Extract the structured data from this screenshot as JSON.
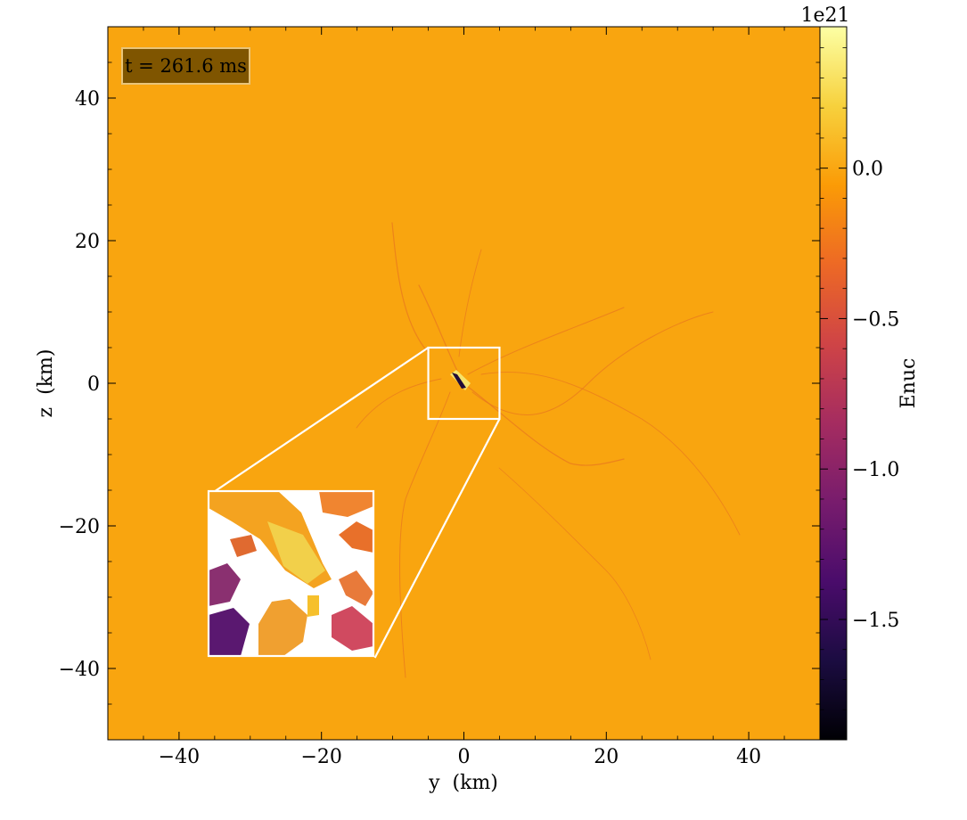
{
  "chart_data": {
    "type": "heatmap",
    "title": "",
    "xlabel": "y  (km)",
    "ylabel": "z  (km)",
    "xlim": [
      -50,
      50
    ],
    "ylim": [
      -50,
      50
    ],
    "xticks": [
      -40,
      -20,
      0,
      20,
      40
    ],
    "yticks": [
      -40,
      -20,
      0,
      20,
      40
    ],
    "x_tick_labels": [
      "−40",
      "−20",
      "0",
      "20",
      "40"
    ],
    "y_tick_labels": [
      "−40",
      "−20",
      "0",
      "20",
      "40"
    ],
    "x_minor_step": 5,
    "y_minor_step": 5,
    "background_value": 0.0,
    "annotation": "t = 261.6 ms",
    "annotation_colors": {
      "fill": "#7f5500",
      "border": "#e8c47a",
      "text": "#ffffff"
    },
    "field_colors": {
      "background": "#f9a50f",
      "streak": "#e8781f",
      "bright": "#f6e36a",
      "dark": "#200c38"
    },
    "zoom_region": {
      "x_range": [
        -5,
        5
      ],
      "z_range": [
        -5,
        5
      ]
    },
    "inset_region": {
      "x_range": [
        -35.5,
        -12.5
      ],
      "z_range": [
        -38.5,
        -15.5
      ]
    },
    "colorbar": {
      "label": "Enuc",
      "offset_text": "1e21",
      "range": [
        -1.9,
        0.47
      ],
      "ticks": [
        0.0,
        -0.5,
        -1.0,
        -1.5
      ],
      "tick_labels": [
        "0.0",
        "−0.5",
        "−1.0",
        "−1.5"
      ],
      "minor_step": 0.1,
      "colormap": "inferno",
      "colormap_stops": [
        "#000004",
        "#1b0c41",
        "#4a0c6b",
        "#781c6d",
        "#a52c60",
        "#cf4446",
        "#ed6925",
        "#fb9b06",
        "#f7d13d",
        "#fcffa4"
      ]
    }
  }
}
